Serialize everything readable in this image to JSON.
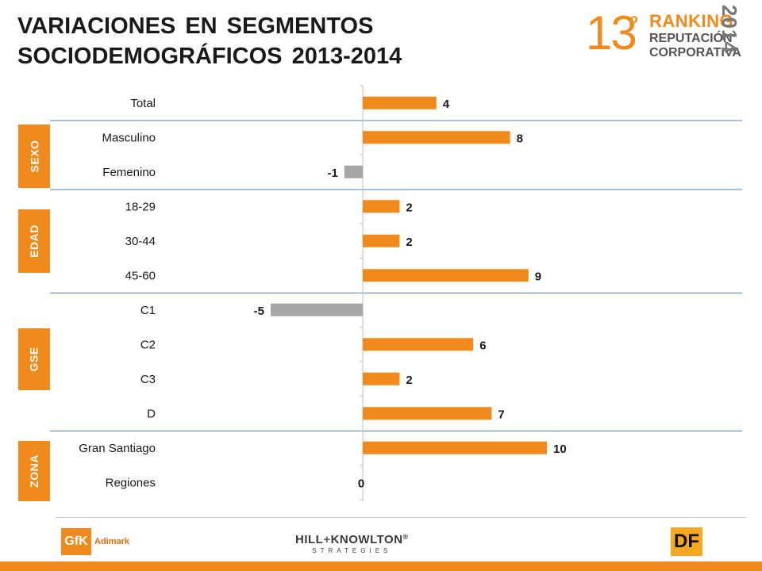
{
  "title": {
    "line1": "VARIACIONES EN SEGMENTOS",
    "line2": "SOCIODEMOGRÁFICOS 2013-2014"
  },
  "ranking_logo": {
    "number": "13",
    "ordinal": "º",
    "word1": "RANKING",
    "word2": "REPUTACIÓN",
    "word3": "CORPORATIVA",
    "year": "2014"
  },
  "groups": {
    "sexo": "SEXO",
    "edad": "EDAD",
    "gse": "GSE",
    "zona": "ZONA"
  },
  "chart_data": {
    "type": "bar",
    "orientation": "horizontal",
    "categories": [
      "Total",
      "Masculino",
      "Femenino",
      "18-29",
      "30-44",
      "45-60",
      "C1",
      "C2",
      "C3",
      "D",
      "Gran Santiago",
      "Regiones"
    ],
    "values": [
      4,
      8,
      -1,
      2,
      2,
      9,
      -5,
      6,
      2,
      7,
      10,
      0
    ],
    "value_labels": [
      "4",
      "8",
      "-1",
      "2",
      "2",
      "9",
      "-5",
      "6",
      "2",
      "7",
      "10",
      "0"
    ],
    "colors": {
      "positive": "#f08a1c",
      "negative": "#a6a6a6"
    },
    "title": "",
    "xlabel": "",
    "ylabel": "",
    "xlim": [
      -12,
      13
    ],
    "grid": false,
    "legend": "none"
  },
  "footer": {
    "gfk_mark": "GfK",
    "gfk_name": "Adimark",
    "hk_left": "HILL",
    "hk_plus": "+",
    "hk_right": "KNOWLTON",
    "hk_reg": "®",
    "hk_sub": "STRATEGIES",
    "df": "DF"
  },
  "colors": {
    "accent": "#f08a1c",
    "negative": "#a6a6a6",
    "separator": "#4f81bd"
  }
}
